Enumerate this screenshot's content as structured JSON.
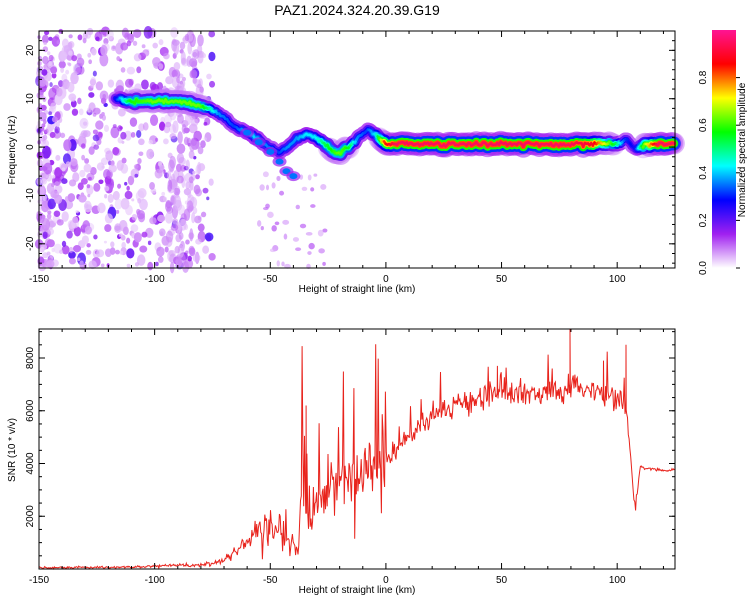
{
  "title": "PAZ1.2024.324.20.39.G19",
  "chart_data": [
    {
      "type": "heatmap",
      "xlabel": "Height of straight line (km)",
      "ylabel": "Frequency (Hz)",
      "xlim": [
        -150,
        125
      ],
      "ylim": [
        -25,
        24
      ],
      "xticks": [
        -150,
        -100,
        -50,
        0,
        50,
        100
      ],
      "yticks": [
        -20,
        -10,
        0,
        10,
        20
      ],
      "colorbar": {
        "label": "Normalized spectral amplitude",
        "range": [
          0,
          1
        ],
        "ticks": [
          "0.0",
          "0.2",
          "0.4",
          "0.6",
          "0.8"
        ],
        "tick_values": [
          0,
          0.2,
          0.4,
          0.6,
          0.8
        ],
        "colors": [
          "#ffffff",
          "#a020f0",
          "#0000ff",
          "#00ffff",
          "#00ff00",
          "#ffff00",
          "#ff0000",
          "#ff1493"
        ]
      },
      "ridge": {
        "x": [
          -117,
          -110,
          -100,
          -90,
          -80,
          -72,
          -65,
          -58,
          -52,
          -46,
          -42,
          -38,
          -34,
          -30,
          -26,
          -23,
          -20,
          -16,
          -12,
          -8,
          -4,
          0,
          5,
          10,
          20,
          30,
          40,
          50,
          60,
          70,
          80,
          90,
          100,
          104,
          108,
          112,
          118,
          125
        ],
        "y": [
          10,
          9.5,
          9.5,
          9.5,
          8.5,
          7,
          4,
          2.5,
          0.5,
          -1,
          0,
          2,
          2.5,
          2,
          0.5,
          -1,
          -1.2,
          0,
          2,
          3.5,
          2.5,
          0.6,
          0.6,
          0.6,
          0.6,
          0.6,
          0.6,
          0.6,
          0.6,
          0.6,
          0.6,
          0.6,
          0.8,
          1.5,
          -0.5,
          0.5,
          0.6,
          0.6
        ],
        "amp": [
          0.25,
          0.55,
          0.6,
          0.6,
          0.6,
          0.35,
          0.3,
          0.4,
          0.35,
          0.3,
          0.35,
          0.35,
          0.4,
          0.4,
          0.5,
          0.55,
          0.6,
          0.55,
          0.35,
          0.3,
          0.4,
          0.8,
          0.9,
          0.9,
          0.9,
          0.9,
          0.9,
          0.9,
          0.9,
          0.9,
          0.9,
          0.85,
          0.5,
          0.3,
          0.25,
          0.6,
          0.9,
          0.9
        ]
      }
    },
    {
      "type": "line",
      "xlabel": "Height of straight line (km)",
      "ylabel": "SNR (10 * v/v)",
      "xlim": [
        -150,
        125
      ],
      "ylim": [
        0,
        9100
      ],
      "xticks": [
        -150,
        -100,
        -50,
        0,
        50,
        100
      ],
      "yticks": [
        2000,
        4000,
        6000,
        8000
      ],
      "series": [
        {
          "color": "#e8231c",
          "x": [
            -150,
            -120,
            -100,
            -90,
            -80,
            -70,
            -65,
            -60,
            -55,
            -50,
            -45,
            -42,
            -40,
            -38,
            -36,
            -35,
            -34,
            -33,
            -32,
            -30,
            -25,
            -20,
            -15,
            -10,
            -5,
            0,
            5,
            10,
            15,
            20,
            25,
            30,
            35,
            40,
            45,
            50,
            55,
            60,
            65,
            70,
            75,
            80,
            85,
            90,
            95,
            100,
            102,
            104,
            105,
            106,
            107,
            108,
            109,
            110,
            112,
            115,
            120,
            125
          ],
          "y": [
            50,
            60,
            100,
            150,
            150,
            300,
            700,
            1100,
            1500,
            1700,
            1500,
            1200,
            900,
            600,
            4000,
            2200,
            2000,
            2400,
            2300,
            2500,
            2800,
            3200,
            3500,
            3600,
            3800,
            4200,
            4600,
            5000,
            5400,
            5800,
            6100,
            6300,
            6400,
            6500,
            6600,
            6700,
            6700,
            6700,
            6700,
            6750,
            6800,
            7000,
            6800,
            6700,
            6600,
            6500,
            6400,
            6000,
            5000,
            4000,
            2600,
            2400,
            3200,
            3900,
            3800,
            3800,
            3750,
            3750
          ],
          "spikes": [
            {
              "x": -34.5,
              "y": 6200
            },
            {
              "x": 79.6,
              "y": 9100
            },
            {
              "x": 103.8,
              "y": 8500
            },
            {
              "x": 48.2,
              "y": 7700
            },
            {
              "x": 94.1,
              "y": 7900
            }
          ]
        }
      ]
    }
  ]
}
